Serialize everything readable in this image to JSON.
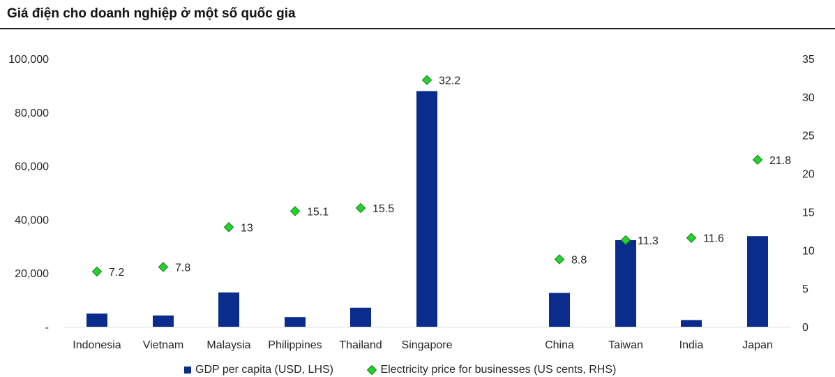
{
  "title": "Giá điện cho doanh nghiệp ở một số quốc gia",
  "chart_data": {
    "type": "bar",
    "categories": [
      "Indonesia",
      "Vietnam",
      "Malaysia",
      "Philippines",
      "Thailand",
      "Singapore",
      "China",
      "Taiwan",
      "India",
      "Japan"
    ],
    "series": [
      {
        "name": "GDP per capita (USD, LHS)",
        "type": "bar",
        "axis": "left",
        "color": "#0a2c8c",
        "values": [
          4900,
          4200,
          12800,
          3600,
          7100,
          87900,
          12600,
          32300,
          2500,
          33800
        ]
      },
      {
        "name": "Electricity price for businesses (US cents, RHS)",
        "type": "scatter",
        "axis": "right",
        "color": "#23d42e",
        "values": [
          7.2,
          7.8,
          13,
          15.1,
          15.5,
          32.2,
          8.8,
          11.3,
          11.6,
          21.8
        ],
        "labels": [
          "7.2",
          "7.8",
          "13",
          "15.1",
          "15.5",
          "32.2",
          "8.8",
          "11.3",
          "11.6",
          "21.8"
        ]
      }
    ],
    "y_left": {
      "lim": [
        0,
        100000
      ],
      "ticks": [
        0,
        20000,
        40000,
        60000,
        80000,
        100000
      ],
      "tick_labels": [
        "-",
        "20,000",
        "40,000",
        "60,000",
        "80,000",
        "100,000"
      ]
    },
    "y_right": {
      "lim": [
        0,
        35
      ],
      "ticks": [
        0,
        5,
        10,
        15,
        20,
        25,
        30,
        35
      ],
      "tick_labels": [
        "0",
        "5",
        "10",
        "15",
        "20",
        "25",
        "30",
        "35"
      ]
    },
    "grid": false,
    "legend_position": "bottom"
  }
}
